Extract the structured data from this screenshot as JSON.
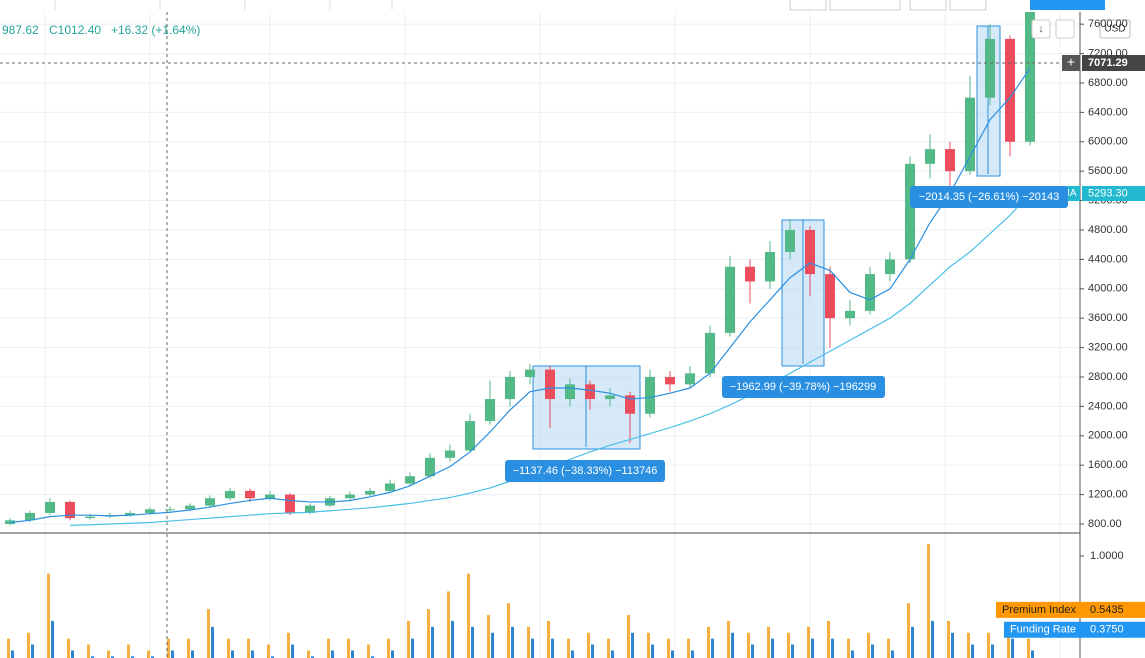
{
  "ui": {
    "ohlc_low": "987.62",
    "ohlc_close": "C1012.40",
    "ohlc_change": "+16.32 (+1.64%)",
    "currency": "USD",
    "crosshair_price": "7071.29",
    "ma_tag": "MA",
    "ma_price": "5293.30",
    "measures": [
      "−1137.46 (−38.33%) −113746",
      "−1962.99 (−39.78%) −196299",
      "−2014.35 (−26.61%) −20143"
    ]
  },
  "chart_data": {
    "type": "candlestick",
    "up_color": "#53b987",
    "down_color": "#eb4d5c",
    "grid": true,
    "ohlc": {
      "open": [
        800,
        850,
        950,
        1100,
        880,
        900,
        920,
        950,
        1000,
        1000,
        1050,
        1150,
        1250,
        1150,
        1200,
        950,
        1050,
        1150,
        1200,
        1250,
        1350,
        1450,
        1700,
        1800,
        2200,
        2500,
        2800,
        2900,
        2500,
        2700,
        2500,
        2550,
        2300,
        2800,
        2700,
        2850,
        3400,
        4300,
        4100,
        4500,
        4800,
        4200,
        3600,
        3700,
        4200,
        4400,
        5700,
        5900,
        5600,
        6600,
        7400,
        6000
      ],
      "high": [
        880,
        980,
        1150,
        1120,
        940,
        950,
        980,
        1030,
        1040,
        1080,
        1190,
        1290,
        1280,
        1250,
        1220,
        1080,
        1180,
        1240,
        1290,
        1400,
        1500,
        1760,
        1880,
        2300,
        2750,
        2880,
        2980,
        2950,
        2780,
        2750,
        2650,
        2600,
        2900,
        2880,
        2950,
        3500,
        4450,
        4400,
        4650,
        4950,
        4850,
        4300,
        3850,
        4300,
        4500,
        5800,
        6100,
        6000,
        6900,
        7600,
        7450,
        8000
      ],
      "low": [
        780,
        830,
        920,
        850,
        860,
        880,
        900,
        930,
        970,
        980,
        1030,
        1120,
        1100,
        1120,
        920,
        930,
        1030,
        1130,
        1180,
        1230,
        1320,
        1430,
        1650,
        1780,
        2150,
        2400,
        2700,
        2100,
        2400,
        2350,
        2400,
        1900,
        2250,
        2600,
        2650,
        2800,
        3350,
        3800,
        4000,
        4400,
        3900,
        3200,
        3500,
        3650,
        4100,
        4350,
        5500,
        5400,
        5550,
        6500,
        5800,
        5950
      ],
      "close": [
        850,
        950,
        1100,
        880,
        900,
        920,
        950,
        1000,
        1000,
        1050,
        1150,
        1250,
        1150,
        1200,
        950,
        1050,
        1150,
        1200,
        1250,
        1350,
        1450,
        1700,
        1800,
        2200,
        2500,
        2800,
        2900,
        2500,
        2700,
        2500,
        2550,
        2300,
        2800,
        2700,
        2850,
        3400,
        4300,
        4100,
        4500,
        4800,
        4200,
        3600,
        3700,
        4200,
        4400,
        5700,
        5900,
        5600,
        6600,
        7400,
        6000,
        7800
      ]
    },
    "lines": [
      {
        "color": "#2a8fe0",
        "values": [
          820,
          850,
          900,
          920,
          920,
          910,
          920,
          940,
          960,
          990,
          1030,
          1080,
          1120,
          1150,
          1120,
          1100,
          1100,
          1120,
          1170,
          1230,
          1320,
          1450,
          1580,
          1780,
          2050,
          2350,
          2600,
          2650,
          2650,
          2620,
          2580,
          2500,
          2520,
          2580,
          2650,
          2850,
          3200,
          3550,
          3850,
          4150,
          4350,
          4250,
          3950,
          3850,
          4000,
          4400,
          4900,
          5300,
          5800,
          6300,
          6600,
          7000
        ]
      },
      {
        "color": "#4cc0e8",
        "values": [
          null,
          null,
          null,
          780,
          790,
          800,
          810,
          820,
          840,
          860,
          880,
          900,
          920,
          940,
          950,
          960,
          980,
          1000,
          1020,
          1050,
          1080,
          1120,
          1160,
          1220,
          1290,
          1380,
          1480,
          1580,
          1680,
          1780,
          1870,
          1950,
          2030,
          2110,
          2200,
          2300,
          2420,
          2550,
          2700,
          2850,
          3000,
          3150,
          3300,
          3450,
          3600,
          3800,
          4050,
          4300,
          4500,
          4750,
          5000,
          5300
        ]
      }
    ],
    "ylim": [
      691,
      7929
    ],
    "yticks": [
      {
        "value": 800,
        "label": "800.00"
      },
      {
        "value": 1200,
        "label": "1200.00"
      },
      {
        "value": 1600,
        "label": "1600.00"
      },
      {
        "value": 2000,
        "label": "2000.00"
      },
      {
        "value": 2400,
        "label": "2400.00"
      },
      {
        "value": 2800,
        "label": "2800.00"
      },
      {
        "value": 3200,
        "label": "3200.00"
      },
      {
        "value": 3600,
        "label": "3600.00"
      },
      {
        "value": 4000,
        "label": "4000.00"
      },
      {
        "value": 4400,
        "label": "4400.00"
      },
      {
        "value": 4800,
        "label": "4800.00"
      },
      {
        "value": 5200,
        "label": "5200.00"
      },
      {
        "value": 5600,
        "label": "5600.00"
      },
      {
        "value": 6000,
        "label": "6000.00"
      },
      {
        "value": 6400,
        "label": "6400.00"
      },
      {
        "value": 6800,
        "label": "6800.00"
      },
      {
        "value": 7200,
        "label": "7200.00"
      },
      {
        "value": 7600,
        "label": "7600.00"
      }
    ],
    "lower_pane": {
      "ylim": [
        0.136,
        1.186
      ],
      "yticks": [
        {
          "value": 1,
          "label": "1.0000"
        }
      ],
      "series": [
        {
          "name": "Premium Index",
          "color": "#f5b041",
          "last": {
            "value": 0.5435,
            "label": "0.5435"
          },
          "values": [
            0.3,
            0.35,
            0.85,
            0.3,
            0.25,
            0.2,
            0.25,
            0.2,
            0.3,
            0.3,
            0.55,
            0.3,
            0.3,
            0.25,
            0.35,
            0.2,
            0.3,
            0.3,
            0.25,
            0.3,
            0.45,
            0.55,
            0.7,
            0.85,
            0.5,
            0.6,
            0.4,
            0.45,
            0.3,
            0.35,
            0.3,
            0.5,
            0.35,
            0.3,
            0.3,
            0.4,
            0.45,
            0.35,
            0.4,
            0.35,
            0.4,
            0.45,
            0.3,
            0.35,
            0.3,
            0.6,
            1.1,
            0.45,
            0.35,
            0.35,
            0.4,
            0.3
          ]
        },
        {
          "name": "Funding Rate",
          "color": "#2f86cf",
          "last": {
            "value": 0.375,
            "label": "0.3750"
          },
          "values": [
            0.2,
            0.25,
            0.45,
            0.2,
            0.15,
            0.15,
            0.15,
            0.15,
            0.2,
            0.2,
            0.4,
            0.2,
            0.2,
            0.15,
            0.25,
            0.15,
            0.2,
            0.2,
            0.15,
            0.2,
            0.3,
            0.4,
            0.45,
            0.4,
            0.35,
            0.4,
            0.3,
            0.3,
            0.2,
            0.25,
            0.2,
            0.35,
            0.25,
            0.2,
            0.2,
            0.3,
            0.35,
            0.25,
            0.3,
            0.25,
            0.3,
            0.3,
            0.2,
            0.25,
            0.2,
            0.4,
            0.45,
            0.35,
            0.25,
            0.25,
            0.3,
            0.2
          ]
        }
      ]
    }
  }
}
